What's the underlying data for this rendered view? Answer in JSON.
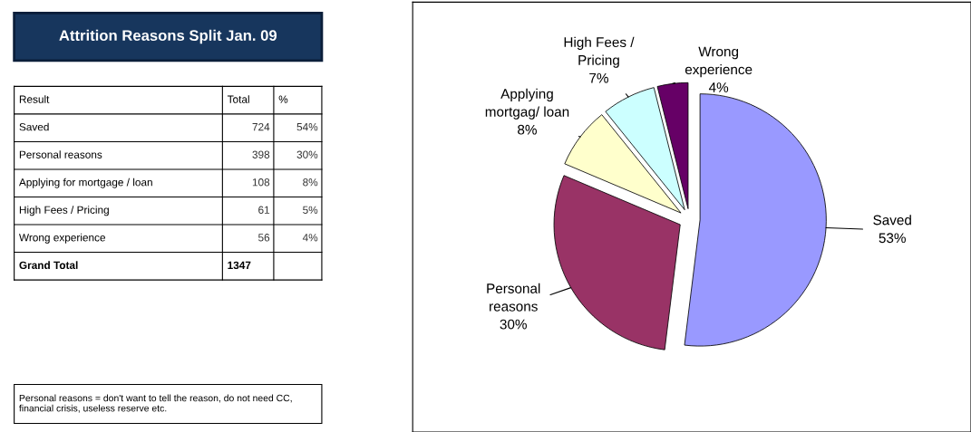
{
  "chart_data": [
    {
      "type": "other",
      "title": "Attrition Reasons Split Jan. 09",
      "ylabel": "Result",
      "categories": [
        "Saved",
        "Personal reasons",
        "Applying for mortgage / loan",
        "High Fees / Pricing",
        "Wrong experience",
        "Grand Total"
      ],
      "series": [
        {
          "name": "Total",
          "values": [
            724,
            398,
            108,
            61,
            56,
            1347
          ],
          "data_labels": true
        },
        {
          "name": "%",
          "values": [
            54,
            30,
            8,
            5,
            4,
            null
          ],
          "value_labels": [
            "54%",
            "30%",
            "8%",
            "5%",
            "4%",
            null
          ]
        }
      ],
      "annotations": [
        "Personal reasons = don't want to tell the reason, do not need CC, financial crisis, useless reserve etc."
      ]
    },
    {
      "type": "pie",
      "categories": [
        "Saved",
        "Personal\nreasons",
        "Applying\nmortgag/ loan",
        "High Fees /\nPricing",
        "Wrong\nexperience"
      ],
      "values": [
        53,
        30,
        8,
        7,
        4
      ],
      "value_labels": [
        "53%",
        "30%",
        "8%",
        "7%",
        "4%"
      ],
      "colors": [
        "#9999ff",
        "#993366",
        "#ffffcc",
        "#ccffff",
        "#660066"
      ]
    }
  ]
}
